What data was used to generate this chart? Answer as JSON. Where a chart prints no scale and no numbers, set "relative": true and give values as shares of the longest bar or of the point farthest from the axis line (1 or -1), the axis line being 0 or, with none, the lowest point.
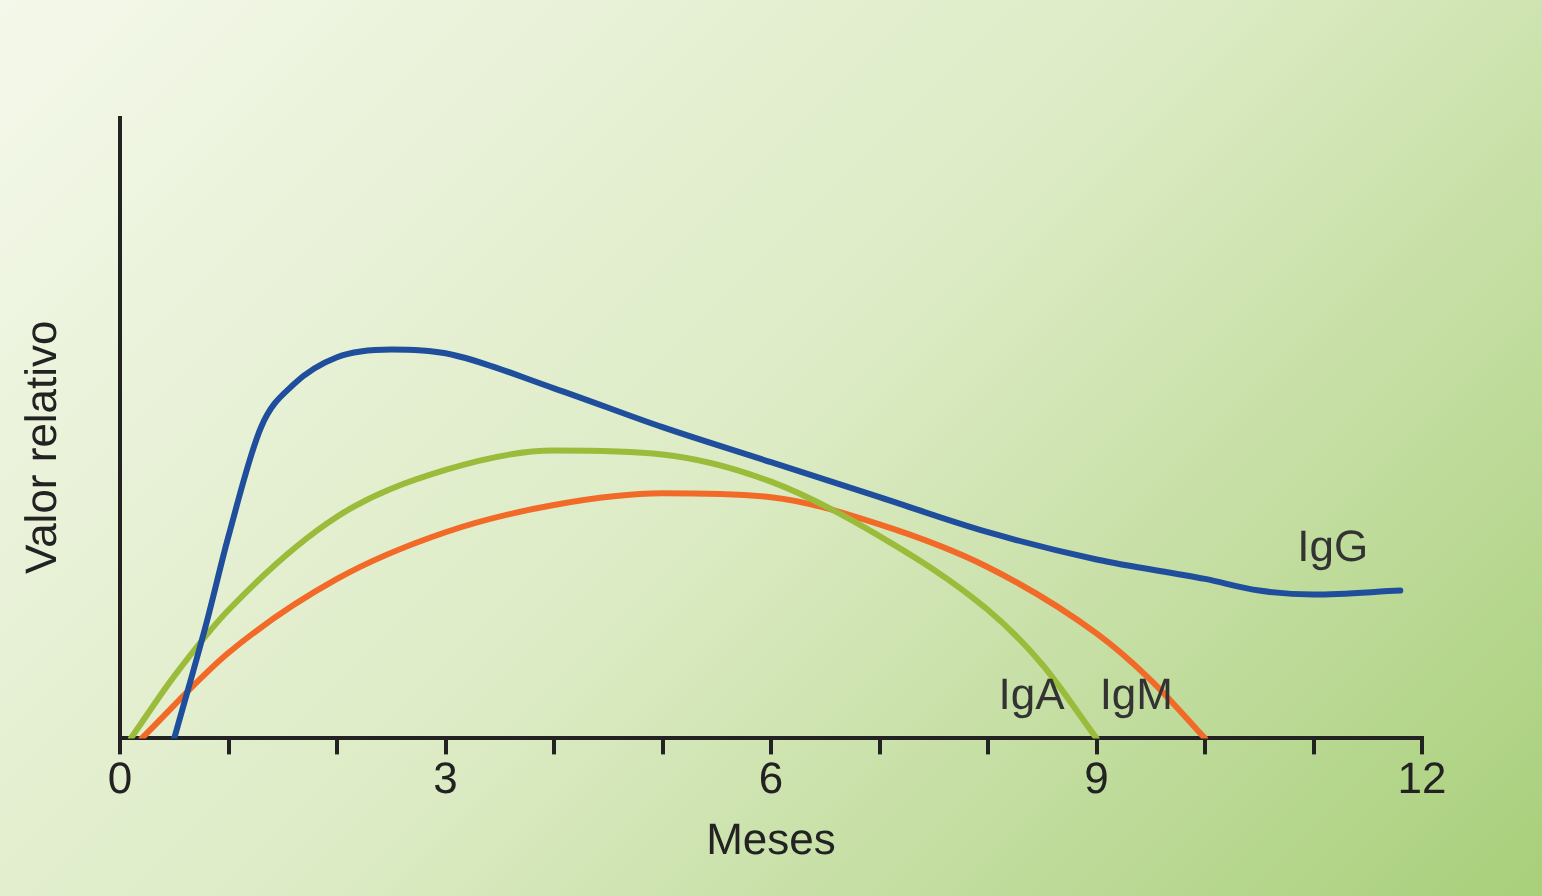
{
  "chart_data": {
    "type": "line",
    "relative": true,
    "xlabel": "Meses",
    "ylabel": "Valor relativo",
    "xlim": [
      0,
      12
    ],
    "xticks": [
      0,
      {
        "value": 1,
        "label": null
      },
      {
        "value": 2,
        "label": null
      },
      3,
      {
        "value": 4,
        "label": null
      },
      {
        "value": 5,
        "label": null
      },
      6,
      {
        "value": 7,
        "label": null
      },
      {
        "value": 8,
        "label": null
      },
      9,
      {
        "value": 10,
        "label": null
      },
      {
        "value": 11,
        "label": null
      },
      12
    ],
    "grid": false,
    "legend": false,
    "marker": "none",
    "line_style": "solid",
    "series": [
      {
        "name": "IgG",
        "color": "#1f4e9c",
        "x": [
          0.5,
          0.8,
          1,
          1.3,
          1.6,
          2,
          2.5,
          3,
          4,
          5,
          6,
          7,
          8,
          9,
          10,
          10.5,
          11,
          11.8
        ],
        "values": [
          0,
          0.3,
          0.52,
          0.8,
          0.91,
          0.98,
          1,
          0.99,
          0.9,
          0.8,
          0.71,
          0.62,
          0.53,
          0.46,
          0.41,
          0.38,
          0.37,
          0.38
        ]
      },
      {
        "name": "IgA",
        "color": "#9bbb3a",
        "x": [
          0.1,
          0.5,
          1,
          2,
          3,
          4,
          5,
          6,
          7,
          8,
          8.5,
          9
        ],
        "values": [
          0,
          0.16,
          0.33,
          0.57,
          0.69,
          0.74,
          0.73,
          0.66,
          0.52,
          0.33,
          0.19,
          0
        ]
      },
      {
        "name": "IgM",
        "color": "#f26a28",
        "x": [
          0.2,
          1,
          2,
          3,
          4,
          5,
          6,
          7,
          8,
          9,
          9.5,
          10
        ],
        "values": [
          0,
          0.22,
          0.41,
          0.53,
          0.6,
          0.63,
          0.62,
          0.55,
          0.44,
          0.27,
          0.15,
          0
        ]
      }
    ]
  }
}
